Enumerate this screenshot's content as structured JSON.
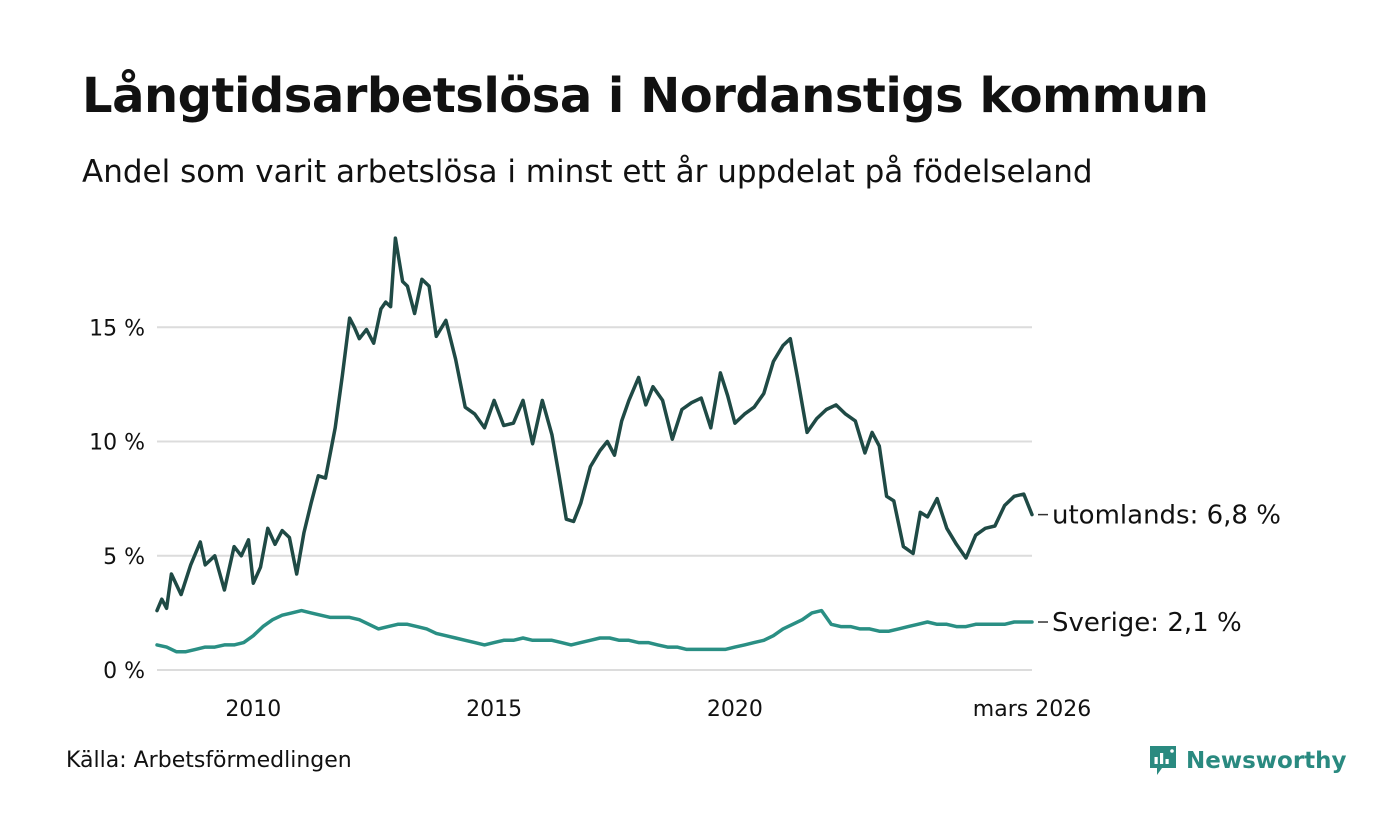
{
  "header": {
    "title": "Långtidsarbetslösa i Nordanstigs kommun",
    "subtitle": "Andel som varit arbetslösa i minst ett år uppdelat på födelseland"
  },
  "footer": {
    "source": "Källa: Arbetsförmedlingen",
    "brand": "Newsworthy"
  },
  "colors": {
    "foreign": "#1f4a45",
    "sweden": "#2a8f84",
    "grid": "#dcdcdc",
    "brand": "#2a8a80"
  },
  "chart_data": {
    "type": "line",
    "title": "Långtidsarbetslösa i Nordanstigs kommun",
    "xlabel": "",
    "ylabel": "",
    "x_range": [
      2008.0,
      2026.17
    ],
    "ylim": [
      0,
      19
    ],
    "y_ticks": [
      0,
      5,
      10,
      15
    ],
    "y_tick_labels": [
      "0 %",
      "5 %",
      "10 %",
      "15 %"
    ],
    "x_ticks": [
      2010,
      2015,
      2020,
      2026.17
    ],
    "x_tick_labels": [
      "2010",
      "2015",
      "2020",
      "mars 2026"
    ],
    "grid": true,
    "series": [
      {
        "name": "utomlands",
        "end_label": "utomlands: 6,8 %",
        "color": "#1f4a45",
        "x": [
          2008.0,
          2008.1,
          2008.2,
          2008.3,
          2008.5,
          2008.7,
          2008.9,
          2009.0,
          2009.2,
          2009.4,
          2009.6,
          2009.75,
          2009.9,
          2010.0,
          2010.15,
          2010.3,
          2010.45,
          2010.6,
          2010.75,
          2010.9,
          2011.05,
          2011.2,
          2011.35,
          2011.5,
          2011.7,
          2011.85,
          2012.0,
          2012.1,
          2012.2,
          2012.35,
          2012.5,
          2012.65,
          2012.75,
          2012.85,
          2012.95,
          2013.1,
          2013.2,
          2013.35,
          2013.5,
          2013.65,
          2013.8,
          2014.0,
          2014.2,
          2014.4,
          2014.6,
          2014.8,
          2015.0,
          2015.2,
          2015.4,
          2015.6,
          2015.8,
          2016.0,
          2016.2,
          2016.35,
          2016.5,
          2016.65,
          2016.8,
          2017.0,
          2017.2,
          2017.35,
          2017.5,
          2017.65,
          2017.8,
          2018.0,
          2018.15,
          2018.3,
          2018.5,
          2018.7,
          2018.9,
          2019.1,
          2019.3,
          2019.5,
          2019.7,
          2019.85,
          2020.0,
          2020.2,
          2020.4,
          2020.6,
          2020.8,
          2021.0,
          2021.15,
          2021.3,
          2021.5,
          2021.7,
          2021.9,
          2022.1,
          2022.3,
          2022.5,
          2022.7,
          2022.85,
          2023.0,
          2023.15,
          2023.3,
          2023.5,
          2023.7,
          2023.85,
          2024.0,
          2024.2,
          2024.4,
          2024.6,
          2024.8,
          2025.0,
          2025.2,
          2025.4,
          2025.6,
          2025.8,
          2026.0,
          2026.17
        ],
        "values": [
          2.6,
          3.1,
          2.7,
          4.2,
          3.3,
          4.6,
          5.6,
          4.6,
          5.0,
          3.5,
          5.4,
          5.0,
          5.7,
          3.8,
          4.5,
          6.2,
          5.5,
          6.1,
          5.8,
          4.2,
          6.0,
          7.3,
          8.5,
          8.4,
          10.6,
          12.9,
          15.4,
          15.0,
          14.5,
          14.9,
          14.3,
          15.8,
          16.1,
          15.9,
          18.9,
          17.0,
          16.8,
          15.6,
          17.1,
          16.8,
          14.6,
          15.3,
          13.6,
          11.5,
          11.2,
          10.6,
          11.8,
          10.7,
          10.8,
          11.8,
          9.9,
          11.8,
          10.3,
          8.5,
          6.6,
          6.5,
          7.3,
          8.9,
          9.6,
          10.0,
          9.4,
          10.9,
          11.8,
          12.8,
          11.6,
          12.4,
          11.8,
          10.1,
          11.4,
          11.7,
          11.9,
          10.6,
          13.0,
          12.0,
          10.8,
          11.2,
          11.5,
          12.1,
          13.5,
          14.2,
          14.5,
          12.8,
          10.4,
          11.0,
          11.4,
          11.6,
          11.2,
          10.9,
          9.5,
          10.4,
          9.8,
          7.6,
          7.4,
          5.4,
          5.1,
          6.9,
          6.7,
          7.5,
          6.2,
          5.5,
          4.9,
          5.9,
          6.2,
          6.3,
          7.2,
          7.6,
          7.7,
          6.8
        ]
      },
      {
        "name": "Sverige",
        "end_label": "Sverige: 2,1 %",
        "color": "#2a8f84",
        "x": [
          2008.0,
          2008.2,
          2008.4,
          2008.6,
          2008.8,
          2009.0,
          2009.2,
          2009.4,
          2009.6,
          2009.8,
          2010.0,
          2010.2,
          2010.4,
          2010.6,
          2010.8,
          2011.0,
          2011.2,
          2011.4,
          2011.6,
          2011.8,
          2012.0,
          2012.2,
          2012.4,
          2012.6,
          2012.8,
          2013.0,
          2013.2,
          2013.4,
          2013.6,
          2013.8,
          2014.0,
          2014.2,
          2014.4,
          2014.6,
          2014.8,
          2015.0,
          2015.2,
          2015.4,
          2015.6,
          2015.8,
          2016.0,
          2016.2,
          2016.4,
          2016.6,
          2016.8,
          2017.0,
          2017.2,
          2017.4,
          2017.6,
          2017.8,
          2018.0,
          2018.2,
          2018.4,
          2018.6,
          2018.8,
          2019.0,
          2019.2,
          2019.4,
          2019.6,
          2019.8,
          2020.0,
          2020.2,
          2020.4,
          2020.6,
          2020.8,
          2021.0,
          2021.2,
          2021.4,
          2021.6,
          2021.8,
          2022.0,
          2022.2,
          2022.4,
          2022.6,
          2022.8,
          2023.0,
          2023.2,
          2023.4,
          2023.6,
          2023.8,
          2024.0,
          2024.2,
          2024.4,
          2024.6,
          2024.8,
          2025.0,
          2025.2,
          2025.4,
          2025.6,
          2025.8,
          2026.0,
          2026.17
        ],
        "values": [
          1.1,
          1.0,
          0.8,
          0.8,
          0.9,
          1.0,
          1.0,
          1.1,
          1.1,
          1.2,
          1.5,
          1.9,
          2.2,
          2.4,
          2.5,
          2.6,
          2.5,
          2.4,
          2.3,
          2.3,
          2.3,
          2.2,
          2.0,
          1.8,
          1.9,
          2.0,
          2.0,
          1.9,
          1.8,
          1.6,
          1.5,
          1.4,
          1.3,
          1.2,
          1.1,
          1.2,
          1.3,
          1.3,
          1.4,
          1.3,
          1.3,
          1.3,
          1.2,
          1.1,
          1.2,
          1.3,
          1.4,
          1.4,
          1.3,
          1.3,
          1.2,
          1.2,
          1.1,
          1.0,
          1.0,
          0.9,
          0.9,
          0.9,
          0.9,
          0.9,
          1.0,
          1.1,
          1.2,
          1.3,
          1.5,
          1.8,
          2.0,
          2.2,
          2.5,
          2.6,
          2.0,
          1.9,
          1.9,
          1.8,
          1.8,
          1.7,
          1.7,
          1.8,
          1.9,
          2.0,
          2.1,
          2.0,
          2.0,
          1.9,
          1.9,
          2.0,
          2.0,
          2.0,
          2.0,
          2.1,
          2.1,
          2.1
        ]
      }
    ]
  }
}
